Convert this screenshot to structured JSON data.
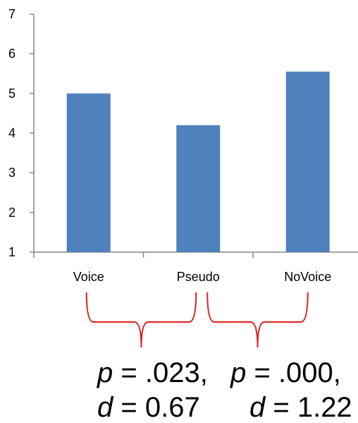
{
  "chart_data": {
    "type": "bar",
    "categories": [
      "Voice",
      "Pseudo",
      "NoVoice"
    ],
    "values": [
      5.0,
      4.2,
      5.55
    ],
    "ylim": [
      1,
      7
    ],
    "yticks": [
      1,
      2,
      3,
      4,
      5,
      6,
      7
    ],
    "bar_color": "#4f81bd",
    "grid": false,
    "title": "",
    "xlabel": "",
    "ylabel": ""
  },
  "brackets": {
    "color": "#e31b1b",
    "spans": [
      {
        "from": "Voice",
        "to": "Pseudo"
      },
      {
        "from": "Pseudo",
        "to": "NoVoice"
      }
    ]
  },
  "stats": {
    "comparisons": [
      {
        "p_symbol": "p",
        "p_value": ".023,",
        "d_symbol": "d",
        "d_value": "0.67"
      },
      {
        "p_symbol": "p",
        "p_value": ".000,",
        "d_symbol": "d",
        "d_value": "1.22"
      }
    ],
    "equals": "="
  }
}
